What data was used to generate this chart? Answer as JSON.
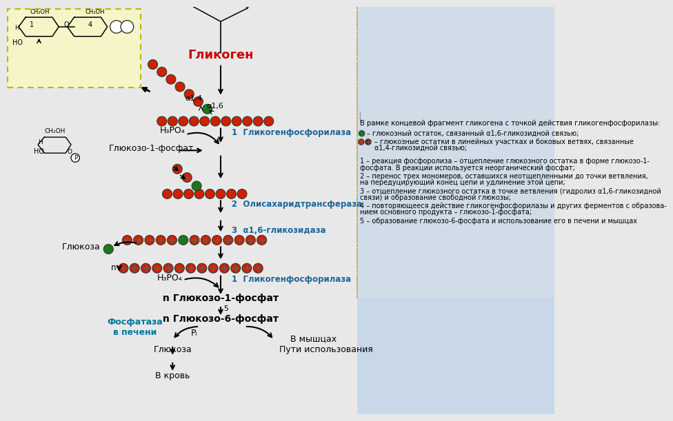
{
  "bg_color": "#e8e8e8",
  "right_panel_color": "#d0dce8",
  "right_panel2_color": "#c8d8e8",
  "yellow_box_color": "#f5f5c8",
  "title_glycogen": "Гликоген",
  "title_glycogen_color": "#cc0000",
  "red_circle_color": "#cc2200",
  "green_circle_color": "#1a7a1a",
  "arrow_color": "#1a1a1a",
  "blue_text_color": "#1a6699",
  "cyan_text_color": "#007799",
  "label1": "1  Гликогенфосфорилаза",
  "label2": "2  Олисахаридтрансфераза",
  "label3": "3  α1,6-гликозидаза",
  "label1b": "1  Гликогенфосфорилаза",
  "label_h3po4": "H₃PO₄",
  "label_h3po4b": "H₃PO₄",
  "label_glukoza1": "Глюкозо-1-фосфат",
  "label_glukoza1n": "n Глюкозо-1-фосфат",
  "label_glukoza6n": "n Глюкозо-6-фосфат",
  "label_glyukoza": "Глюкоза",
  "label_glyukoza2": "Глюкоза",
  "label_krov": "В кровь",
  "label_mishci": "В мышцах",
  "label_puti": "Пути использования",
  "label_fosfataza": "Фосфатаза\nв печени",
  "label_fosfataza_color": "#007799",
  "label_pi": "Pᵢ",
  "label_n": "n",
  "label_alpha14": "α1,4",
  "label_alpha16": "α1,6",
  "label_num5": "5",
  "legend_header": "В рамке концевой фрагмент гликогена с точкой действия гликогенфосфорилазы:",
  "legend_green": "– глюкозный остаток, связанный α1,6-гликозидной связью;",
  "legend_red1": "– глюкозные остатки в линейных участках и боковых ветвях, связанные",
  "legend_red2": "α1,4-гликозидной связью;",
  "legend_1a": "1 – реакция фосфоролиза – отщепление глюкозного остатка в форме глюкозо-1-",
  "legend_1b": "фосфата. В реакции используется неорганический фосфат;",
  "legend_2a": "2 – перенос трех мономеров, оставшихся неотщепленными до точки ветвления,",
  "legend_2b": "на передуцирующий конец цепи и удлинение этой цепи;",
  "legend_3a": "3 – отщепление глюкозного остатка в точке ветвления (гидролиз α1,6-гликозидной",
  "legend_3b": "связи) и образование свободной глюкозы;",
  "legend_4a": "4 – повторяющееся действие гликогенфосфорилазы и других ферментов с образова-",
  "legend_4b": "нием основного продукта – глюкозо-1-фосфата;",
  "legend_5": "5 – образование глюкозо-6-фосфата и использование его в печени и мышцах"
}
